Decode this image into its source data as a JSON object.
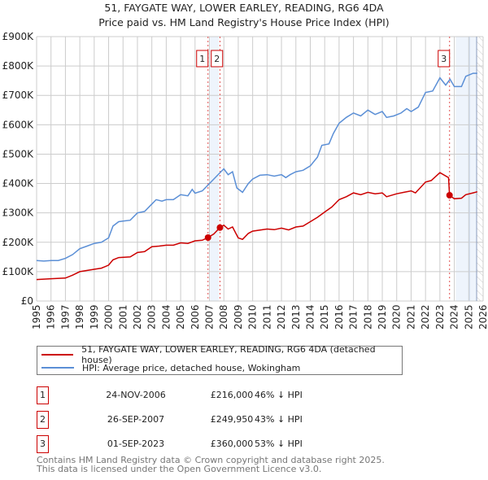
{
  "title": "51, FAYGATE WAY, LOWER EARLEY, READING, RG6 4DA",
  "subtitle": "Price paid vs. HM Land Registry's House Price Index (HPI)",
  "colors": {
    "property": "#cc0000",
    "hpi": "#5b8fd6"
  },
  "chart_data": {
    "type": "line",
    "title": "51, FAYGATE WAY, LOWER EARLEY, READING, RG6 4DA",
    "xlim": [
      1995,
      2026
    ],
    "ylim": [
      0,
      900000
    ],
    "x_ticks": [
      "1995",
      "1996",
      "1997",
      "1998",
      "1999",
      "2000",
      "2001",
      "2002",
      "2003",
      "2004",
      "2005",
      "2006",
      "2007",
      "2008",
      "2009",
      "2010",
      "2011",
      "2012",
      "2013",
      "2014",
      "2015",
      "2016",
      "2017",
      "2018",
      "2019",
      "2020",
      "2021",
      "2022",
      "2023",
      "2024",
      "2025",
      "2026"
    ],
    "y_ticks": [
      {
        "v": 0,
        "l": "£0"
      },
      {
        "v": 100000,
        "l": "£100K"
      },
      {
        "v": 200000,
        "l": "£200K"
      },
      {
        "v": 300000,
        "l": "£300K"
      },
      {
        "v": 400000,
        "l": "£400K"
      },
      {
        "v": 500000,
        "l": "£500K"
      },
      {
        "v": 600000,
        "l": "£600K"
      },
      {
        "v": 700000,
        "l": "£700K"
      },
      {
        "v": 800000,
        "l": "£800K"
      },
      {
        "v": 900000,
        "l": "£900K"
      }
    ],
    "grid": true,
    "series": [
      {
        "name": "51, FAYGATE WAY, LOWER EARLEY, READING, RG6 4DA (detached house)",
        "unit": "£K",
        "x": [
          1995,
          1996,
          1997,
          1997.5,
          1998,
          1999,
          1999.5,
          2000,
          2000.3,
          2000.7,
          2001.5,
          2002,
          2002.5,
          2003,
          2003.5,
          2004,
          2004.5,
          2005,
          2005.5,
          2006,
          2006.5,
          2006.9,
          2007.3,
          2007.73,
          2008,
          2008.3,
          2008.6,
          2009,
          2009.3,
          2009.7,
          2010,
          2011,
          2011.5,
          2012,
          2012.5,
          2013,
          2013.5,
          2014,
          2014.5,
          2015,
          2015.5,
          2016,
          2016.5,
          2017,
          2017.5,
          2018,
          2018.5,
          2019,
          2019.3,
          2020,
          2020.5,
          2021,
          2021.3,
          2022,
          2022.4,
          2023,
          2023.6,
          2023.67,
          2024,
          2024.5,
          2024.8,
          2025.3,
          2025.6
        ],
        "y": [
          73,
          76,
          78,
          88,
          100,
          108,
          112,
          122,
          140,
          148,
          150,
          165,
          168,
          185,
          187,
          190,
          190,
          198,
          196,
          205,
          207,
          216,
          228,
          250,
          258,
          245,
          252,
          215,
          210,
          230,
          238,
          245,
          243,
          248,
          242,
          252,
          255,
          270,
          285,
          303,
          320,
          345,
          355,
          368,
          362,
          370,
          365,
          368,
          355,
          365,
          370,
          375,
          368,
          405,
          410,
          437,
          420,
          360,
          348,
          350,
          362,
          368,
          372
        ]
      },
      {
        "name": "HPI: Average price, detached house, Wokingham",
        "unit": "£K",
        "x": [
          1995,
          1995.5,
          1996,
          1996.5,
          1997,
          1997.5,
          1998,
          1998.5,
          1999,
          1999.5,
          2000,
          2000.3,
          2000.7,
          2001,
          2001.5,
          2002,
          2002.5,
          2003,
          2003.3,
          2003.7,
          2004,
          2004.5,
          2005,
          2005.5,
          2005.8,
          2006,
          2006.5,
          2007,
          2007.5,
          2008,
          2008.3,
          2008.6,
          2008.9,
          2009.3,
          2009.7,
          2010,
          2010.5,
          2011,
          2011.5,
          2012,
          2012.3,
          2012.6,
          2013,
          2013.5,
          2014,
          2014.5,
          2014.8,
          2015.3,
          2015.6,
          2016,
          2016.5,
          2017,
          2017.5,
          2018,
          2018.5,
          2019,
          2019.3,
          2019.8,
          2020.3,
          2020.7,
          2021,
          2021.5,
          2022,
          2022.5,
          2023,
          2023.4,
          2023.7,
          2024,
          2024.5,
          2024.8,
          2025.3,
          2025.6
        ],
        "y": [
          138,
          136,
          138,
          138,
          145,
          158,
          178,
          187,
          196,
          200,
          215,
          255,
          270,
          272,
          275,
          300,
          305,
          330,
          345,
          340,
          345,
          345,
          362,
          358,
          380,
          367,
          375,
          400,
          425,
          450,
          430,
          440,
          385,
          370,
          400,
          415,
          428,
          430,
          425,
          430,
          420,
          430,
          440,
          445,
          460,
          490,
          530,
          535,
          570,
          605,
          625,
          640,
          630,
          650,
          635,
          645,
          625,
          630,
          640,
          655,
          645,
          660,
          710,
          715,
          760,
          735,
          755,
          730,
          730,
          765,
          775,
          775
        ]
      }
    ],
    "sales": [
      {
        "id": "1",
        "x": 2006.9,
        "price": 216
      },
      {
        "id": "2",
        "x": 2007.73,
        "price": 249.95
      },
      {
        "id": "3",
        "x": 2023.67,
        "price": 360
      }
    ]
  },
  "legend": {
    "property": "51, FAYGATE WAY, LOWER EARLEY, READING, RG6 4DA (detached house)",
    "hpi": "HPI: Average price, detached house, Wokingham"
  },
  "transactions": [
    {
      "id": "1",
      "date": "24-NOV-2006",
      "price": "£216,000",
      "hpi": "46% ↓ HPI"
    },
    {
      "id": "2",
      "date": "26-SEP-2007",
      "price": "£249,950",
      "hpi": "43% ↓ HPI"
    },
    {
      "id": "3",
      "date": "01-SEP-2023",
      "price": "£360,000",
      "hpi": "53% ↓ HPI"
    }
  ],
  "footer": [
    "Contains HM Land Registry data © Crown copyright and database right 2025.",
    "This data is licensed under the Open Government Licence v3.0."
  ]
}
